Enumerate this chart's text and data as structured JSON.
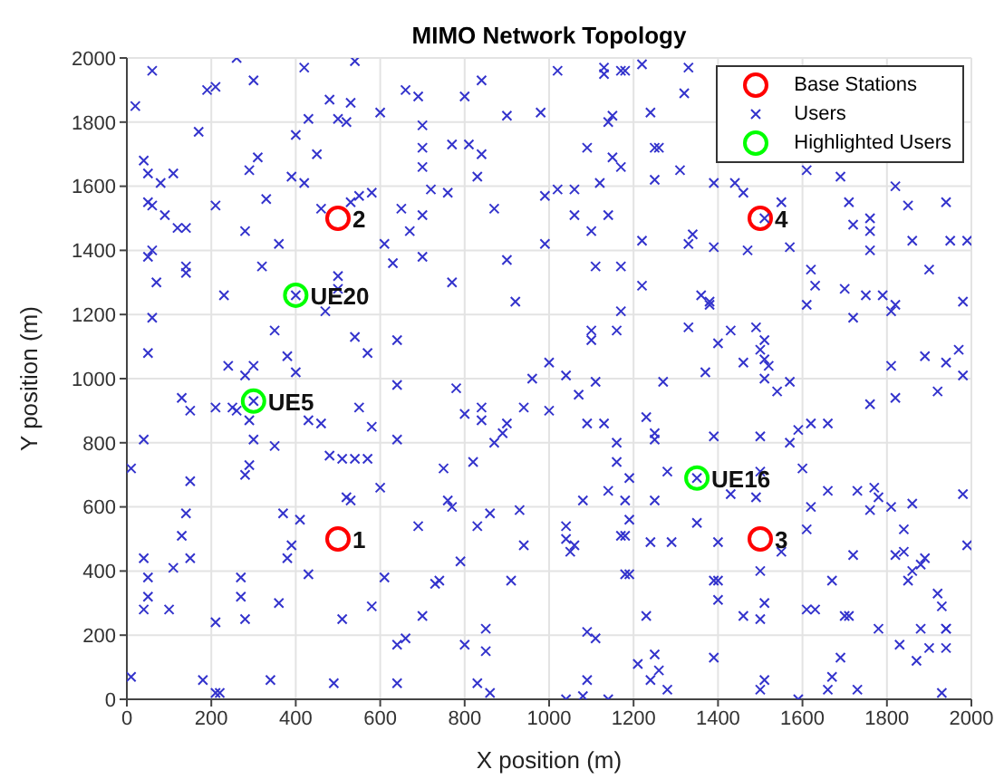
{
  "chart_data": {
    "type": "scatter",
    "title": "MIMO Network Topology",
    "xlabel": "X position (m)",
    "ylabel": "Y position (m)",
    "xlim": [
      0,
      2000
    ],
    "ylim": [
      0,
      2000
    ],
    "xticks": [
      0,
      200,
      400,
      600,
      800,
      1000,
      1200,
      1400,
      1600,
      1800,
      2000
    ],
    "yticks": [
      0,
      200,
      400,
      600,
      800,
      1000,
      1200,
      1400,
      1600,
      1800,
      2000
    ],
    "grid": true,
    "legend": "top right",
    "series": [
      {
        "name": "Base Stations",
        "color": "#ff0000",
        "marker": "circle",
        "x": [
          500,
          500,
          1500,
          1500
        ],
        "values": [
          500,
          1500,
          500,
          1500
        ]
      },
      {
        "name": "Users",
        "color": "#3333cc",
        "marker": "cross",
        "x": [
          60,
          260,
          300,
          420,
          540,
          20,
          190,
          210,
          170,
          480,
          530,
          500,
          520,
          430,
          600,
          400,
          450,
          310,
          290,
          40,
          50,
          110,
          80,
          390,
          420,
          50,
          60,
          90,
          120,
          140,
          210,
          330,
          280,
          460,
          530,
          550,
          580,
          360,
          60,
          50,
          70,
          140,
          140,
          320,
          230,
          500,
          500,
          470,
          60,
          50,
          350,
          380,
          400,
          540,
          570,
          640,
          240,
          280,
          300,
          660,
          690,
          700,
          700,
          700,
          720,
          760,
          770,
          810,
          840,
          840,
          800,
          900,
          980,
          1020,
          1020,
          990,
          830,
          870,
          650,
          670,
          700,
          630,
          610,
          700,
          770,
          900,
          920,
          990,
          1000,
          960,
          400,
          1130,
          1130,
          1170,
          1180,
          1220,
          1330,
          1320,
          1150,
          1140,
          1240,
          1090,
          1150,
          1170,
          1250,
          1260,
          1250,
          1310,
          1060,
          1120,
          1060,
          1140,
          1100,
          1390,
          1440,
          1460,
          1550,
          1510,
          1610,
          1690,
          1820,
          1710,
          1850,
          1940,
          1720,
          1760,
          1760,
          1760,
          1860,
          1950,
          1990,
          1220,
          1330,
          1340,
          1390,
          1470,
          1570,
          1110,
          1170,
          1220,
          1620,
          1630,
          1700,
          1750,
          1790,
          1610,
          1820,
          1810,
          1720,
          1900,
          1980,
          1360,
          1380,
          1380,
          1170,
          1100,
          1100,
          1160,
          1330,
          1430,
          1400,
          1490,
          1510,
          1500,
          1510,
          1520,
          1460,
          1040,
          1110,
          1270,
          1370,
          1510,
          1570,
          1810,
          1890,
          1940,
          1970,
          1980,
          130,
          150,
          210,
          250,
          260,
          300,
          290,
          300,
          350,
          290,
          280,
          150,
          10,
          40,
          430,
          460,
          550,
          580,
          640,
          640,
          480,
          510,
          540,
          570,
          600,
          520,
          530,
          370,
          410,
          140,
          130,
          390,
          380,
          40,
          50,
          150,
          110,
          40,
          50,
          100,
          270,
          270,
          280,
          430,
          360,
          210,
          10,
          180,
          210,
          220,
          340,
          490,
          510,
          580,
          610,
          690,
          640,
          660,
          640,
          700,
          750,
          760,
          770,
          780,
          800,
          840,
          840,
          870,
          890,
          900,
          940,
          1000,
          820,
          830,
          860,
          790,
          740,
          730,
          930,
          940,
          910,
          800,
          850,
          850,
          830,
          860,
          1070,
          1090,
          1130,
          1230,
          1250,
          1250,
          1160,
          1160,
          1190,
          1280,
          1390,
          1500,
          1570,
          1590,
          1620,
          1660,
          1540,
          1760,
          1820,
          1920,
          1350,
          1500,
          1490,
          1430,
          1600,
          1080,
          1140,
          1180,
          1250,
          1660,
          1730,
          1770,
          1780,
          1860,
          1760,
          1810,
          1620,
          1980,
          1040,
          1040,
          1060,
          1050,
          1170,
          1180,
          1190,
          1350,
          1240,
          1290,
          1400,
          1610,
          1550,
          1840,
          1720,
          1820,
          1840,
          1890,
          1880,
          1860,
          1850,
          1990,
          1180,
          1190,
          1390,
          1400,
          1400,
          1500,
          1230,
          1460,
          1500,
          1510,
          1610,
          1630,
          1670,
          1700,
          1710,
          1780,
          1920,
          1930,
          1940,
          1940,
          1880,
          1830,
          1870,
          1900,
          1940,
          1090,
          1110,
          1250,
          1260,
          1240,
          1280,
          1210,
          1390,
          1690,
          1670,
          1730,
          1660,
          1510,
          1500,
          1090,
          1080,
          1040,
          1140,
          1590,
          1930
        ],
        "values": [
          1960,
          2000,
          1930,
          1970,
          1990,
          1850,
          1900,
          1910,
          1770,
          1870,
          1860,
          1810,
          1800,
          1810,
          1830,
          1760,
          1700,
          1690,
          1650,
          1680,
          1640,
          1640,
          1610,
          1630,
          1610,
          1550,
          1540,
          1510,
          1470,
          1470,
          1540,
          1560,
          1460,
          1530,
          1550,
          1570,
          1580,
          1420,
          1400,
          1380,
          1300,
          1350,
          1330,
          1350,
          1260,
          1320,
          1280,
          1210,
          1190,
          1080,
          1150,
          1070,
          1020,
          1130,
          1080,
          1120,
          1040,
          1010,
          1040,
          1900,
          1880,
          1790,
          1720,
          1660,
          1590,
          1580,
          1730,
          1730,
          1700,
          1930,
          1880,
          1820,
          1830,
          1960,
          1590,
          1570,
          1630,
          1530,
          1530,
          1460,
          1510,
          1360,
          1420,
          1380,
          1300,
          1370,
          1240,
          1420,
          1050,
          1000,
          1260,
          1970,
          1950,
          1960,
          1960,
          1980,
          1970,
          1890,
          1820,
          1800,
          1830,
          1720,
          1690,
          1660,
          1720,
          1720,
          1620,
          1650,
          1590,
          1610,
          1510,
          1510,
          1460,
          1610,
          1610,
          1580,
          1550,
          1500,
          1650,
          1630,
          1600,
          1550,
          1540,
          1550,
          1480,
          1500,
          1460,
          1400,
          1430,
          1430,
          1430,
          1430,
          1420,
          1450,
          1410,
          1400,
          1410,
          1350,
          1350,
          1290,
          1340,
          1290,
          1280,
          1260,
          1260,
          1230,
          1230,
          1210,
          1190,
          1340,
          1240,
          1260,
          1240,
          1230,
          1210,
          1150,
          1120,
          1150,
          1160,
          1150,
          1110,
          1160,
          1120,
          1090,
          1060,
          1040,
          1050,
          1010,
          990,
          990,
          1020,
          1000,
          990,
          1040,
          1070,
          1050,
          1090,
          1010,
          940,
          900,
          910,
          910,
          900,
          930,
          870,
          810,
          790,
          730,
          700,
          680,
          720,
          810,
          870,
          860,
          910,
          850,
          980,
          810,
          760,
          750,
          750,
          750,
          660,
          630,
          620,
          580,
          560,
          580,
          510,
          480,
          440,
          440,
          380,
          440,
          410,
          280,
          320,
          280,
          380,
          320,
          250,
          390,
          300,
          240,
          70,
          60,
          20,
          20,
          60,
          50,
          250,
          290,
          380,
          540,
          170,
          190,
          50,
          260,
          720,
          620,
          600,
          970,
          890,
          910,
          870,
          800,
          830,
          860,
          910,
          900,
          740,
          540,
          580,
          430,
          370,
          360,
          590,
          480,
          370,
          170,
          220,
          150,
          50,
          20,
          950,
          860,
          860,
          880,
          830,
          810,
          800,
          740,
          690,
          710,
          820,
          820,
          800,
          840,
          860,
          860,
          960,
          920,
          940,
          960,
          690,
          710,
          630,
          640,
          720,
          620,
          650,
          620,
          620,
          650,
          650,
          660,
          630,
          610,
          590,
          600,
          600,
          640,
          540,
          500,
          480,
          460,
          510,
          510,
          560,
          550,
          490,
          490,
          490,
          530,
          460,
          530,
          450,
          450,
          460,
          440,
          420,
          400,
          370,
          480,
          390,
          390,
          370,
          370,
          310,
          400,
          260,
          260,
          250,
          300,
          280,
          280,
          370,
          260,
          260,
          220,
          330,
          290,
          220,
          220,
          220,
          170,
          120,
          160,
          160,
          210,
          190,
          140,
          90,
          60,
          30,
          110,
          130,
          130,
          70,
          30,
          30,
          60,
          30,
          60,
          10,
          0,
          0,
          0,
          20
        ]
      },
      {
        "name": "Highlighted Users",
        "color": "#00ff00",
        "marker": "circle",
        "x": [
          400,
          300,
          1350
        ],
        "values": [
          1260,
          930,
          690
        ]
      }
    ],
    "annotations": [
      {
        "text": "1",
        "x": 500,
        "y": 500
      },
      {
        "text": "2",
        "x": 500,
        "y": 1500
      },
      {
        "text": "3",
        "x": 1500,
        "y": 500
      },
      {
        "text": "4",
        "x": 1500,
        "y": 1500
      },
      {
        "text": "UE20",
        "x": 400,
        "y": 1260
      },
      {
        "text": "UE5",
        "x": 300,
        "y": 930
      },
      {
        "text": "UE16",
        "x": 1350,
        "y": 690
      }
    ]
  }
}
